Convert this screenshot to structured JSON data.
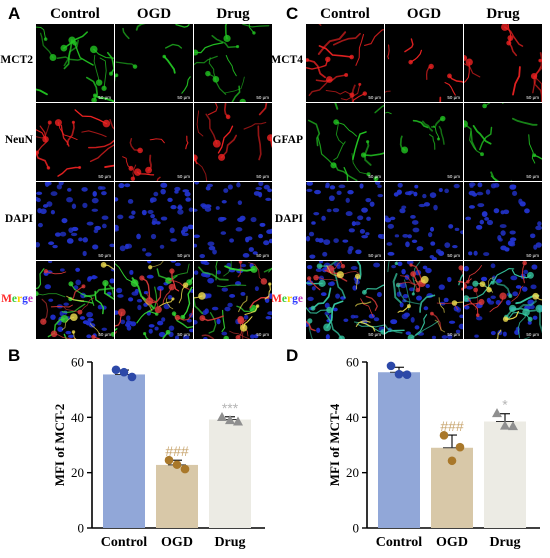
{
  "panels": {
    "A": {
      "letter": "A",
      "columns": [
        "Control",
        "OGD",
        "Drug"
      ],
      "rows": [
        {
          "label": "MCT2",
          "color": "#22c422"
        },
        {
          "label": "NeuN",
          "color": "#ee2222"
        },
        {
          "label": "DAPI",
          "color": "#2233cc"
        },
        {
          "label": "Merge",
          "color": "merge"
        }
      ],
      "scale_text": "50 μm"
    },
    "C": {
      "letter": "C",
      "columns": [
        "Control",
        "OGD",
        "Drug"
      ],
      "rows": [
        {
          "label": "MCT4",
          "color": "#ee2222"
        },
        {
          "label": "GFAP",
          "color": "#22c422"
        },
        {
          "label": "DAPI",
          "color": "#2233cc"
        },
        {
          "label": "Merge",
          "color": "merge"
        }
      ],
      "scale_text": "50 μm"
    },
    "B": {
      "letter": "B"
    },
    "D": {
      "letter": "D"
    }
  },
  "merge_letters": [
    "M",
    "e",
    "r",
    "g",
    "e"
  ],
  "chart_data": [
    {
      "type": "bar",
      "panel": "B",
      "categories": [
        "Control",
        "OGD",
        "Drug"
      ],
      "values": [
        55.5,
        22.8,
        39.2
      ],
      "points": [
        [
          57.2,
          54.6,
          56.3
        ],
        [
          24.5,
          21.3,
          22.9
        ],
        [
          40.1,
          38.5,
          39.0
        ]
      ],
      "errors": [
        1.6,
        1.7,
        1.0
      ],
      "ylabel": "MFI of MCT-2",
      "ylim": [
        0,
        60
      ],
      "yticks": [
        0,
        20,
        40,
        60
      ],
      "annotations": [
        "",
        "###",
        "***"
      ],
      "bar_colors": [
        "#91a7d8",
        "#d8c8a8",
        "#ecebe4"
      ],
      "point_colors": [
        "#2c48a8",
        "#a9782a",
        "#8f8f8f"
      ],
      "markers": [
        "circle",
        "circle",
        "triangle"
      ]
    },
    {
      "type": "bar",
      "panel": "D",
      "categories": [
        "Control",
        "OGD",
        "Drug"
      ],
      "values": [
        56.3,
        29.0,
        38.5
      ],
      "points": [
        [
          58.6,
          55.4,
          55.6
        ],
        [
          33.5,
          29.2,
          24.3
        ],
        [
          41.5,
          36.8,
          37.0
        ]
      ],
      "errors": [
        1.8,
        4.6,
        2.8
      ],
      "ylabel": "MFI of MCT-4",
      "ylim": [
        0,
        60
      ],
      "yticks": [
        0,
        20,
        40,
        60
      ],
      "annotations": [
        "",
        "###",
        "*"
      ],
      "bar_colors": [
        "#91a7d8",
        "#d8c8a8",
        "#ecebe4"
      ],
      "point_colors": [
        "#2c48a8",
        "#a9782a",
        "#8f8f8f"
      ],
      "markers": [
        "circle",
        "circle",
        "triangle"
      ]
    }
  ]
}
